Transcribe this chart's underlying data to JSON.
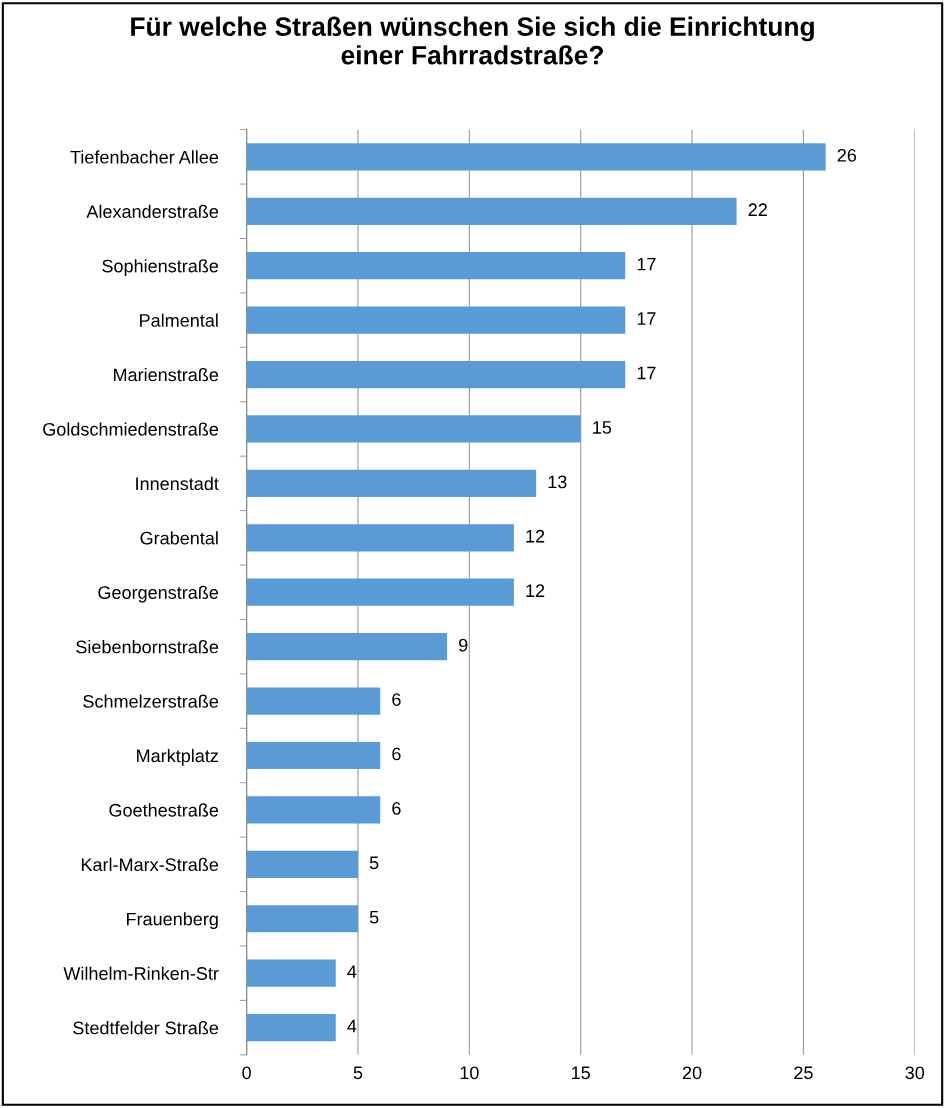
{
  "chart_data": {
    "type": "bar",
    "orientation": "horizontal",
    "title": "Für welche Straßen wünschen Sie sich die Einrichtung\neiner Fahrradstraße?",
    "categories": [
      "Tiefenbacher Allee",
      "Alexanderstraße",
      "Sophienstraße",
      "Palmental",
      "Marienstraße",
      "Goldschmiedenstraße",
      "Innenstadt",
      "Grabental",
      "Georgenstraße",
      "Siebenbornstraße",
      "Schmelzerstraße",
      "Marktplatz",
      "Goethestraße",
      "Karl-Marx-Straße",
      "Frauenberg",
      "Wilhelm-Rinken-Str",
      "Stedtfelder Straße"
    ],
    "values": [
      26,
      22,
      17,
      17,
      17,
      15,
      13,
      12,
      12,
      9,
      6,
      6,
      6,
      5,
      5,
      4,
      4
    ],
    "color": "#5b9bd5",
    "xlim": [
      0,
      30
    ],
    "xticks": [
      0,
      5,
      10,
      15,
      20,
      25,
      30
    ],
    "grid": "x",
    "data_labels": true,
    "legend": false
  }
}
